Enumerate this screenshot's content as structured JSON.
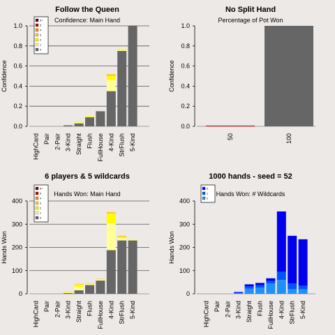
{
  "colors": {
    "background": "#ede9e6",
    "grey": "#666666",
    "yellow_light": "#ffff99",
    "yellow": "#ffff00",
    "orange": "#ffcc33",
    "orange_dark": "#ff8800",
    "red": "#cc0000",
    "dark_red": "#660000",
    "blue_light": "#1e90ff",
    "blue_mid": "#0055ff",
    "blue": "#0000ee"
  },
  "chart_data": [
    {
      "type": "bar",
      "title": "Follow the Queen",
      "subtitle": "Confidence: Main Hand",
      "ylabel": "Confidence",
      "ylim": [
        0,
        1
      ],
      "yticks": [
        "0.0",
        "0.2",
        "0.4",
        "0.6",
        "0.8",
        "1.0"
      ],
      "grid": true,
      "legend_position": "top-left",
      "legend": [
        "5+",
        "5",
        "4",
        "3",
        "2",
        "1",
        "0"
      ],
      "categories": [
        "HighCard",
        "Pair",
        "2-Pair",
        "3-Kind",
        "Straight",
        "Flush",
        "FullHouse",
        "4-Kind",
        "StrFlush",
        "5-Kind"
      ],
      "stacked": true,
      "series": [
        {
          "name": "0",
          "values": [
            0,
            0,
            0,
            0.01,
            0.03,
            0.09,
            0.15,
            0.35,
            0.75,
            1.0
          ]
        },
        {
          "name": "1",
          "values": [
            0,
            0,
            0,
            0,
            0.01,
            0.0,
            0.0,
            0.11,
            0.01,
            0.0
          ]
        },
        {
          "name": "2",
          "values": [
            0,
            0,
            0,
            0,
            0.01,
            0.01,
            0.0,
            0.04,
            0.01,
            0.0
          ]
        },
        {
          "name": "3",
          "values": [
            0,
            0,
            0,
            0,
            0.0,
            0.0,
            0.0,
            0.02,
            0.0,
            0.0
          ]
        }
      ]
    },
    {
      "type": "bar",
      "title": "No Split Hand",
      "subtitle": "Percentage of Pot Won",
      "ylabel": "Confidence",
      "ylim": [
        0,
        1
      ],
      "yticks": [
        "0.0",
        "0.2",
        "0.4",
        "0.6",
        "0.8",
        "1.0"
      ],
      "grid": false,
      "categories": [
        "50",
        "100"
      ],
      "values": [
        0.0,
        1.0
      ]
    },
    {
      "type": "bar",
      "title": "6 players & 5 wildcards",
      "subtitle": "Hands Won: Main Hand",
      "ylabel": "Hands Won",
      "ylim": [
        0,
        400
      ],
      "yticks": [
        "0",
        "100",
        "200",
        "300",
        "400"
      ],
      "grid": true,
      "legend_position": "top-left",
      "legend": [
        "5+",
        "5",
        "4",
        "3",
        "2",
        "1",
        "0"
      ],
      "categories": [
        "HighCard",
        "Pair",
        "2-Pair",
        "3-Kind",
        "Straight",
        "Flush",
        "FullHouse",
        "4-Kind",
        "StrFlush",
        "5-Kind"
      ],
      "stacked": true,
      "series": [
        {
          "name": "0",
          "values": [
            0,
            0,
            0,
            3,
            15,
            38,
            57,
            188,
            230,
            230
          ]
        },
        {
          "name": "1",
          "values": [
            0,
            0,
            0,
            3,
            15,
            5,
            5,
            115,
            10,
            4
          ]
        },
        {
          "name": "2",
          "values": [
            0,
            0,
            0,
            2,
            10,
            2,
            2,
            42,
            5,
            2
          ]
        },
        {
          "name": "3",
          "values": [
            0,
            0,
            0,
            1,
            3,
            1,
            1,
            8,
            5,
            0
          ]
        }
      ]
    },
    {
      "type": "bar",
      "title": "1000 hands - seed = 52",
      "subtitle": "Hands Won: # Wildcards",
      "ylabel": "Hands Won",
      "ylim": [
        0,
        400
      ],
      "yticks": [
        "0",
        "100",
        "200",
        "300",
        "400"
      ],
      "grid": false,
      "legend_position": "top-left",
      "legend": [
        "0",
        "1",
        "2"
      ],
      "categories": [
        "HighCard",
        "Pair",
        "2-Pair",
        "3-Kind",
        "Straight",
        "Flush",
        "FullHouse",
        "4-Kind",
        "StrFlush",
        "5-Kind"
      ],
      "stacked": true,
      "series": [
        {
          "name": "0",
          "values": [
            0,
            0,
            0,
            2,
            22,
            27,
            45,
            60,
            20,
            20
          ]
        },
        {
          "name": "1",
          "values": [
            0,
            0,
            0,
            3,
            10,
            10,
            10,
            35,
            25,
            15
          ]
        },
        {
          "name": "2",
          "values": [
            0,
            0,
            0,
            3,
            9,
            10,
            12,
            260,
            205,
            200
          ]
        }
      ]
    }
  ]
}
